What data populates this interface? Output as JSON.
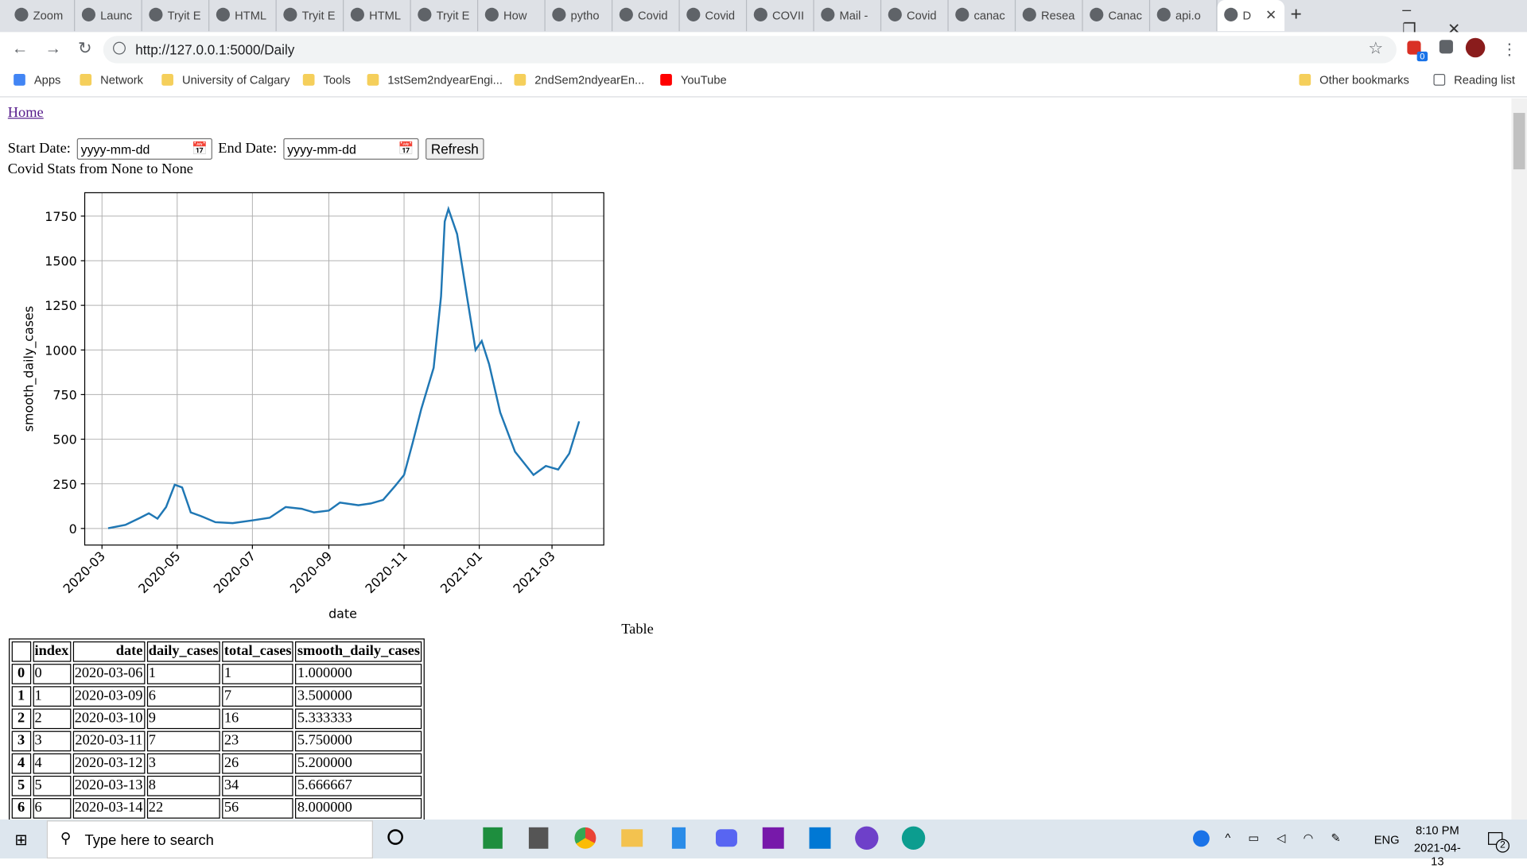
{
  "browser": {
    "tabs": [
      "Zoom",
      "Launc",
      "Tryit E",
      "HTML",
      "Tryit E",
      "HTML",
      "Tryit E",
      "How",
      "pytho",
      "Covid",
      "Covid",
      "COVII",
      "Mail -",
      "Covid",
      "canac",
      "Resea",
      "Canac",
      "api.o",
      "D"
    ],
    "url": "http://127.0.0.1:5000/Daily",
    "bookmarks": [
      "Apps",
      "Network",
      "University of Calgary",
      "Tools",
      "1stSem2ndyearEngi...",
      "2ndSem2ndyearEn...",
      "YouTube"
    ],
    "other_bookmarks": "Other bookmarks",
    "reading_list": "Reading list",
    "extension_badge": "0"
  },
  "page": {
    "home_link": "Home",
    "start_label": "Start Date:",
    "end_label": "End Date:",
    "date_placeholder": "yyyy-mm-dd",
    "refresh": "Refresh",
    "stats_title": "Covid Stats from None to None",
    "table_caption": "Table",
    "table": {
      "header": [
        "",
        "index",
        "date",
        "daily_cases",
        "total_cases",
        "smooth_daily_cases"
      ],
      "rows": [
        [
          "0",
          "0",
          "2020-03-06",
          "1",
          "1",
          "1.000000"
        ],
        [
          "1",
          "1",
          "2020-03-09",
          "6",
          "7",
          "3.500000"
        ],
        [
          "2",
          "2",
          "2020-03-10",
          "9",
          "16",
          "5.333333"
        ],
        [
          "3",
          "3",
          "2020-03-11",
          "7",
          "23",
          "5.750000"
        ],
        [
          "4",
          "4",
          "2020-03-12",
          "3",
          "26",
          "5.200000"
        ],
        [
          "5",
          "5",
          "2020-03-13",
          "8",
          "34",
          "5.666667"
        ],
        [
          "6",
          "6",
          "2020-03-14",
          "22",
          "56",
          "8.000000"
        ]
      ]
    }
  },
  "chart_data": {
    "type": "line",
    "xlabel": "date",
    "ylabel": "smooth_daily_cases",
    "color": "#1f77b4",
    "grid": true,
    "x": [
      "2020-03-06",
      "2020-03-20",
      "2020-04-01",
      "2020-04-08",
      "2020-04-15",
      "2020-04-22",
      "2020-04-29",
      "2020-05-05",
      "2020-05-12",
      "2020-05-20",
      "2020-06-01",
      "2020-06-15",
      "2020-07-01",
      "2020-07-15",
      "2020-07-28",
      "2020-08-10",
      "2020-08-20",
      "2020-09-01",
      "2020-09-10",
      "2020-09-25",
      "2020-10-05",
      "2020-10-15",
      "2020-10-25",
      "2020-11-01",
      "2020-11-08",
      "2020-11-15",
      "2020-11-25",
      "2020-12-01",
      "2020-12-04",
      "2020-12-07",
      "2020-12-14",
      "2020-12-22",
      "2020-12-29",
      "2021-01-03",
      "2021-01-09",
      "2021-01-18",
      "2021-01-30",
      "2021-02-14",
      "2021-02-24",
      "2021-03-06",
      "2021-03-15",
      "2021-03-23"
    ],
    "values": [
      1,
      20,
      60,
      85,
      55,
      120,
      245,
      230,
      90,
      70,
      35,
      30,
      45,
      60,
      120,
      110,
      90,
      100,
      145,
      130,
      140,
      160,
      240,
      300,
      480,
      670,
      900,
      1300,
      1720,
      1790,
      1650,
      1300,
      1000,
      1050,
      920,
      650,
      430,
      300,
      350,
      330,
      420,
      600
    ],
    "xlim": [
      "2020-02-16",
      "2021-04-12"
    ],
    "xticks": [
      {
        "value": "2020-03-01",
        "label": "2020-03"
      },
      {
        "value": "2020-05-01",
        "label": "2020-05"
      },
      {
        "value": "2020-07-01",
        "label": "2020-07"
      },
      {
        "value": "2020-09-01",
        "label": "2020-09"
      },
      {
        "value": "2020-11-01",
        "label": "2020-11"
      },
      {
        "value": "2021-01-01",
        "label": "2021-01"
      },
      {
        "value": "2021-03-01",
        "label": "2021-03"
      }
    ],
    "ylim": [
      -93,
      1881
    ],
    "yticks": [
      0,
      250,
      500,
      750,
      1000,
      1250,
      1500,
      1750
    ]
  },
  "taskbar": {
    "search": "Type here to search",
    "lang": "ENG",
    "time": "8:10 PM",
    "date": "2021-04-13",
    "notifications": "2"
  }
}
